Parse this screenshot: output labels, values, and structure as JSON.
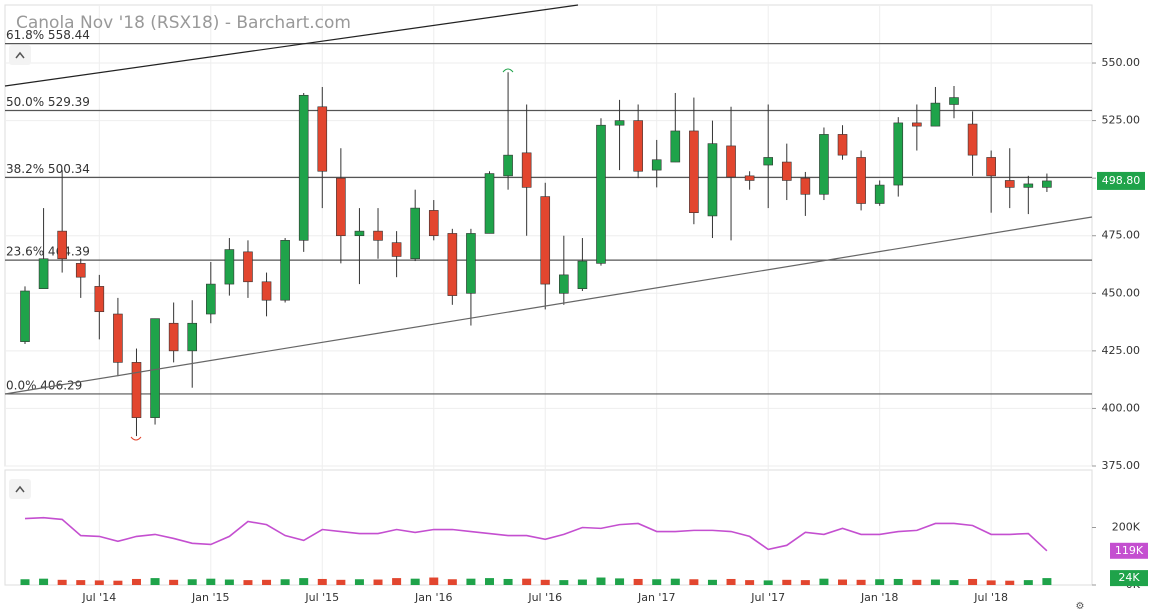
{
  "title": "Canola Nov '18 (RSX18) - Barchart.com",
  "chart_data": [
    {
      "type": "candlestick",
      "categories": [
        null,
        null,
        null,
        null,
        "Jul '14",
        null,
        null,
        null,
        null,
        null,
        "Jan '15",
        null,
        null,
        null,
        null,
        null,
        "Jul '15",
        null,
        null,
        null,
        null,
        null,
        "Jan '16",
        null,
        null,
        null,
        null,
        null,
        "Jul '16",
        null,
        null,
        null,
        null,
        null,
        "Jan '17",
        null,
        null,
        null,
        null,
        null,
        "Jul '17",
        null,
        null,
        null,
        null,
        null,
        "Jan '18",
        null,
        null,
        null,
        null,
        null,
        "Jul '18",
        null,
        null,
        null
      ],
      "open": [
        429,
        452,
        477,
        463,
        453,
        441,
        420,
        396,
        437,
        425,
        441,
        454,
        468,
        455,
        447,
        473,
        531,
        500,
        475,
        477,
        472,
        465,
        486,
        476,
        450,
        476,
        501,
        511,
        492,
        450,
        452,
        463,
        523,
        525,
        503.5,
        507,
        520.5,
        483.6,
        514,
        501,
        505.7,
        507,
        500,
        493,
        519,
        509,
        489,
        497,
        524,
        522.6,
        532,
        523.5,
        509,
        499,
        496,
        496
      ],
      "high": [
        453,
        487,
        503.5,
        465,
        458,
        448,
        426,
        439,
        446,
        447,
        463.6,
        474,
        473,
        459,
        474,
        537,
        539.6,
        513,
        487,
        487,
        477,
        495,
        490.5,
        478,
        478,
        503,
        546,
        532,
        498,
        475,
        474,
        526,
        534,
        532,
        516.6,
        537,
        535,
        525,
        531,
        503,
        532,
        515,
        502.7,
        522,
        523,
        512,
        499,
        526.5,
        532,
        539.6,
        540,
        529,
        512,
        513,
        501,
        502
      ],
      "low": [
        428,
        452,
        459,
        448,
        430,
        414,
        388,
        393,
        420,
        409,
        437,
        449,
        448,
        440,
        446,
        468,
        487,
        463,
        454,
        465,
        457,
        464,
        473,
        445,
        436,
        476,
        495,
        475,
        443,
        445,
        451,
        462,
        503.5,
        500,
        496,
        507,
        480,
        474,
        473,
        495,
        487,
        490.5,
        483.6,
        490.5,
        508,
        486,
        488,
        492,
        512,
        522.6,
        526,
        501,
        485,
        487,
        484.4,
        494
      ],
      "close": [
        451,
        465,
        465,
        457,
        442,
        420,
        396,
        439,
        425,
        437,
        454,
        469,
        455,
        447,
        473,
        536,
        503,
        475,
        477,
        473,
        466,
        487,
        475,
        449,
        476,
        502,
        510,
        496,
        454,
        458,
        464,
        523,
        525,
        503,
        508,
        520.5,
        485,
        515,
        500.5,
        499,
        509,
        499,
        493,
        519,
        510,
        489,
        497,
        524,
        522.6,
        532.6,
        535,
        510,
        501,
        496,
        497.5,
        498.8
      ],
      "up_color": "#1fa34a",
      "down_color": "#e2462f",
      "ylim": [
        375,
        575.2
      ],
      "yticks": [
        {
          "value": 375,
          "label": "375.00"
        },
        {
          "value": 400,
          "label": "400.00"
        },
        {
          "value": 425,
          "label": "425.00"
        },
        {
          "value": 450,
          "label": "450.00"
        },
        {
          "value": 475,
          "label": "475.00"
        },
        {
          "value": 500,
          "label": "500.00"
        },
        {
          "value": 525,
          "label": "525.00"
        },
        {
          "value": 550,
          "label": "550.00"
        }
      ],
      "fib": [
        {
          "value": 558.44,
          "label": "61.8% 558.44"
        },
        {
          "value": 529.39,
          "label": "50.0% 529.39"
        },
        {
          "value": 500.34,
          "label": "38.2% 500.34"
        },
        {
          "value": 464.39,
          "label": "23.6% 464.39"
        },
        {
          "value": 406.29,
          "label": "0.0% 406.29"
        }
      ],
      "last": {
        "value": 498.8,
        "label": "498.80"
      }
    },
    {
      "type": "volume",
      "series": [
        {
          "type": "bar",
          "values": [
            20,
            22,
            18,
            17,
            16,
            15,
            21,
            24,
            18,
            20,
            22,
            19,
            17,
            18,
            20,
            24,
            21,
            18,
            20,
            19,
            24,
            22,
            26,
            20,
            22,
            24,
            21,
            22,
            18,
            17,
            19,
            26,
            23,
            21,
            20,
            22,
            20,
            18,
            21,
            17,
            16,
            18,
            17,
            22,
            19,
            18,
            20,
            21,
            18,
            19,
            17,
            21,
            16,
            15,
            17,
            24
          ],
          "last": {
            "value": 24,
            "label": "24K"
          }
        },
        {
          "type": "line",
          "color": "#c44fd0",
          "values": [
            231,
            234,
            228,
            172,
            169,
            152,
            169,
            176,
            162,
            145,
            141,
            169,
            221,
            210,
            172,
            155,
            193,
            186,
            179,
            179,
            193,
            183,
            193,
            193,
            186,
            179,
            172,
            172,
            159,
            176,
            200,
            197,
            210,
            214,
            186,
            186,
            190,
            190,
            186,
            169,
            124,
            138,
            183,
            176,
            197,
            176,
            176,
            186,
            190,
            214,
            214,
            207,
            176,
            176,
            179,
            119
          ],
          "last": {
            "value": 119,
            "label": "119K"
          }
        }
      ],
      "ylim": [
        0,
        400
      ],
      "yticks": [
        {
          "value": 0,
          "label": "0K"
        },
        {
          "value": 200,
          "label": "200K"
        }
      ]
    }
  ]
}
